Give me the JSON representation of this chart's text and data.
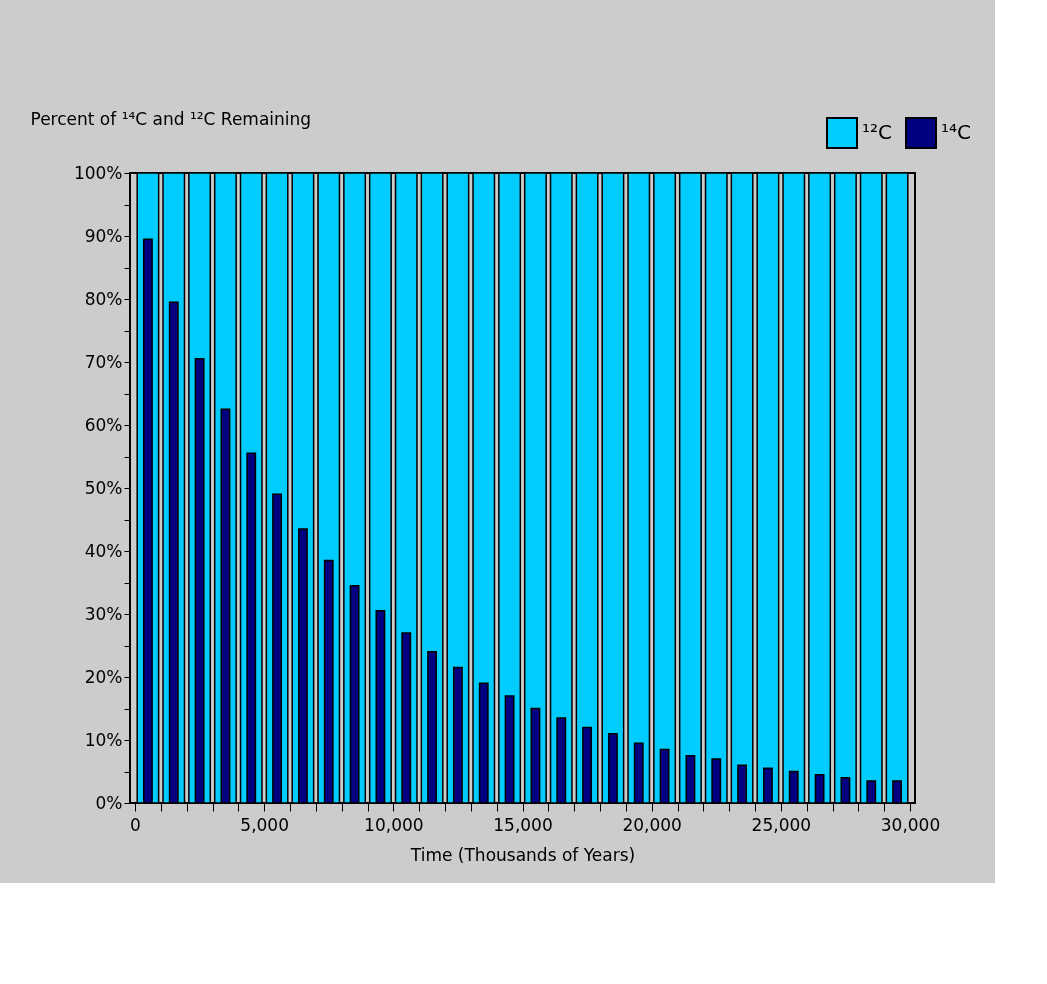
{
  "chart_data": {
    "type": "bar",
    "ylabel": "Percent of ¹⁴C and ¹²C Remaining",
    "xlabel": "Time (Thousands of Years)",
    "x": [
      500,
      1500,
      2500,
      3500,
      4500,
      5500,
      6500,
      7500,
      8500,
      9500,
      10500,
      11500,
      12500,
      13500,
      14500,
      15500,
      16500,
      17500,
      18500,
      19500,
      20500,
      21500,
      22500,
      23500,
      24500,
      25500,
      26500,
      27500,
      28500,
      29500
    ],
    "series": [
      {
        "name": "¹²C",
        "color": "#00ccff",
        "values": [
          100,
          100,
          100,
          100,
          100,
          100,
          100,
          100,
          100,
          100,
          100,
          100,
          100,
          100,
          100,
          100,
          100,
          100,
          100,
          100,
          100,
          100,
          100,
          100,
          100,
          100,
          100,
          100,
          100,
          100
        ]
      },
      {
        "name": "¹⁴C",
        "color": "#000080",
        "values": [
          89.5,
          79.5,
          70.5,
          62.5,
          55.5,
          49,
          43.5,
          38.5,
          34.5,
          30.5,
          27,
          24,
          21.5,
          19,
          17,
          15,
          13.5,
          12,
          11,
          9.5,
          8.5,
          7.5,
          7,
          6,
          5.5,
          5,
          4.5,
          4,
          3.5,
          3.5
        ]
      }
    ],
    "xlim": [
      0,
      30000
    ],
    "xticks": [
      0,
      {
        "value": 1000,
        "label": null
      },
      {
        "value": 2000,
        "label": null
      },
      {
        "value": 3000,
        "label": null
      },
      {
        "value": 4000,
        "label": null
      },
      {
        "value": 5000,
        "label": "5,000"
      },
      {
        "value": 6000,
        "label": null
      },
      {
        "value": 7000,
        "label": null
      },
      {
        "value": 8000,
        "label": null
      },
      {
        "value": 9000,
        "label": null
      },
      {
        "value": 10000,
        "label": "10,000"
      },
      {
        "value": 11000,
        "label": null
      },
      {
        "value": 12000,
        "label": null
      },
      {
        "value": 13000,
        "label": null
      },
      {
        "value": 14000,
        "label": null
      },
      {
        "value": 15000,
        "label": "15,000"
      },
      {
        "value": 16000,
        "label": null
      },
      {
        "value": 17000,
        "label": null
      },
      {
        "value": 18000,
        "label": null
      },
      {
        "value": 19000,
        "label": null
      },
      {
        "value": 20000,
        "label": "20,000"
      },
      {
        "value": 21000,
        "label": null
      },
      {
        "value": 22000,
        "label": null
      },
      {
        "value": 23000,
        "label": null
      },
      {
        "value": 24000,
        "label": null
      },
      {
        "value": 25000,
        "label": "25,000"
      },
      {
        "value": 26000,
        "label": null
      },
      {
        "value": 27000,
        "label": null
      },
      {
        "value": 28000,
        "label": null
      },
      {
        "value": 29000,
        "label": null
      },
      {
        "value": 30000,
        "label": "30,000"
      }
    ],
    "ylim": [
      0,
      100
    ],
    "yticks": [
      {
        "value": 0,
        "label": "0%"
      },
      {
        "value": 5,
        "label": null
      },
      {
        "value": 10,
        "label": "10%"
      },
      {
        "value": 15,
        "label": null
      },
      {
        "value": 20,
        "label": "20%"
      },
      {
        "value": 25,
        "label": null
      },
      {
        "value": 30,
        "label": "30%"
      },
      {
        "value": 35,
        "label": null
      },
      {
        "value": 40,
        "label": "40%"
      },
      {
        "value": 45,
        "label": null
      },
      {
        "value": 50,
        "label": "50%"
      },
      {
        "value": 55,
        "label": null
      },
      {
        "value": 60,
        "label": "60%"
      },
      {
        "value": 65,
        "label": null
      },
      {
        "value": 70,
        "label": "70%"
      },
      {
        "value": 75,
        "label": null
      },
      {
        "value": 80,
        "label": "80%"
      },
      {
        "value": 85,
        "label": null
      },
      {
        "value": 90,
        "label": "90%"
      },
      {
        "value": 95,
        "label": null
      },
      {
        "value": 100,
        "label": "100%"
      }
    ],
    "grid": false,
    "legend": "top right"
  }
}
